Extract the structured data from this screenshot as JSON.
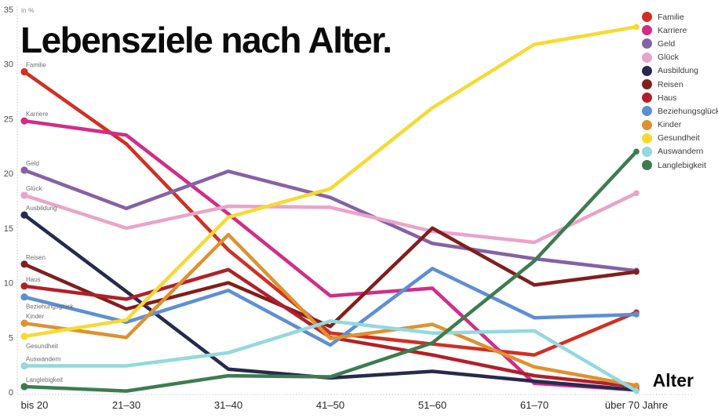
{
  "title": "Lebensziele nach Alter.",
  "y_axis": {
    "unit_label": "in %",
    "ticks": [
      0,
      5,
      10,
      15,
      20,
      25,
      30,
      35
    ]
  },
  "x_axis": {
    "title": "Alter"
  },
  "chart_data": {
    "type": "line",
    "title": "Lebensziele nach Alter.",
    "ylabel": "in %",
    "xlabel": "Alter",
    "ylim": [
      0,
      35
    ],
    "grid": "dotted axis lines only, no interior gridlines",
    "legend_position": "top-right",
    "categories": [
      "bis 20",
      "21–30",
      "31–40",
      "41–50",
      "51–60",
      "61–70",
      "über 70 Jahre"
    ],
    "series": [
      {
        "name": "Familie",
        "color": "#d03023",
        "values": [
          29.3,
          22.7,
          13.0,
          5.4,
          4.4,
          3.4,
          7.3
        ]
      },
      {
        "name": "Karriere",
        "color": "#d12d87",
        "values": [
          24.8,
          23.5,
          16.3,
          8.8,
          9.5,
          0.8,
          0.2
        ]
      },
      {
        "name": "Geld",
        "color": "#8562a4",
        "values": [
          20.3,
          16.8,
          20.2,
          17.8,
          13.6,
          12.2,
          11.1
        ]
      },
      {
        "name": "Glück",
        "color": "#e9a4c9",
        "values": [
          18.0,
          15.0,
          17.0,
          16.9,
          14.7,
          13.7,
          18.2
        ]
      },
      {
        "name": "Ausbildung",
        "color": "#272a4e",
        "values": [
          16.2,
          9.2,
          2.1,
          1.3,
          1.9,
          1.0,
          0.2
        ]
      },
      {
        "name": "Reisen",
        "color": "#801f1c",
        "values": [
          11.7,
          7.6,
          10.0,
          6.0,
          15.0,
          9.8,
          11.0
        ]
      },
      {
        "name": "Haus",
        "color": "#b1202a",
        "values": [
          9.7,
          8.5,
          11.2,
          5.0,
          3.4,
          1.5,
          0.5
        ]
      },
      {
        "name": "Beziehungsglück",
        "color": "#5d8fd3",
        "values": [
          8.7,
          6.4,
          9.3,
          4.3,
          11.3,
          6.8,
          7.1
        ]
      },
      {
        "name": "Kinder",
        "color": "#dd9230",
        "values": [
          6.3,
          5.0,
          14.4,
          4.9,
          6.2,
          2.3,
          0.6
        ]
      },
      {
        "name": "Gesundheit",
        "color": "#f6da32",
        "values": [
          5.1,
          6.6,
          16.0,
          18.6,
          26.0,
          31.8,
          33.4
        ]
      },
      {
        "name": "Auswandern",
        "color": "#93d9de",
        "values": [
          2.4,
          2.4,
          3.6,
          6.5,
          5.4,
          5.6,
          0.1
        ]
      },
      {
        "name": "Langlebigkeit",
        "color": "#3d7c50",
        "values": [
          0.5,
          0.1,
          1.5,
          1.4,
          4.5,
          12.0,
          22.0
        ]
      }
    ]
  }
}
